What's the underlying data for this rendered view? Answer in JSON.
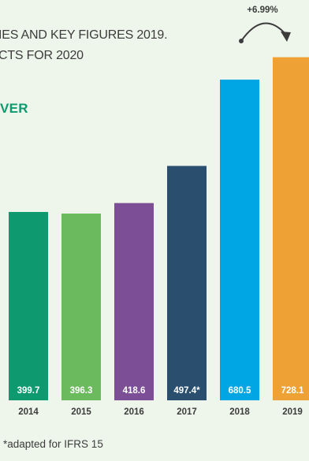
{
  "header": {
    "line1": "IES AND KEY FIGURES 2019.",
    "line2": "CTS FOR 2020"
  },
  "section_label": "VER",
  "growth": {
    "label": "+6.99%"
  },
  "footnote": "*adapted for IFRS 15",
  "colors": {
    "background": "#eef5eb",
    "accent_green": "#0e9a6e",
    "text": "#3c3c3c"
  },
  "chart_data": {
    "type": "bar",
    "categories": [
      "2014",
      "2015",
      "2016",
      "2017",
      "2018",
      "2019"
    ],
    "values": [
      399.7,
      396.3,
      418.6,
      497.4,
      680.5,
      728.1
    ],
    "value_labels": [
      "399.7",
      "396.3",
      "418.6",
      "497.4*",
      "680.5",
      "728.1"
    ],
    "colors": [
      "#0e9a6e",
      "#6cba5e",
      "#7b4e96",
      "#2a4f6e",
      "#00a6e3",
      "#eea236"
    ],
    "title": "",
    "xlabel": "",
    "ylabel": "",
    "grid": false,
    "legend": "none"
  }
}
